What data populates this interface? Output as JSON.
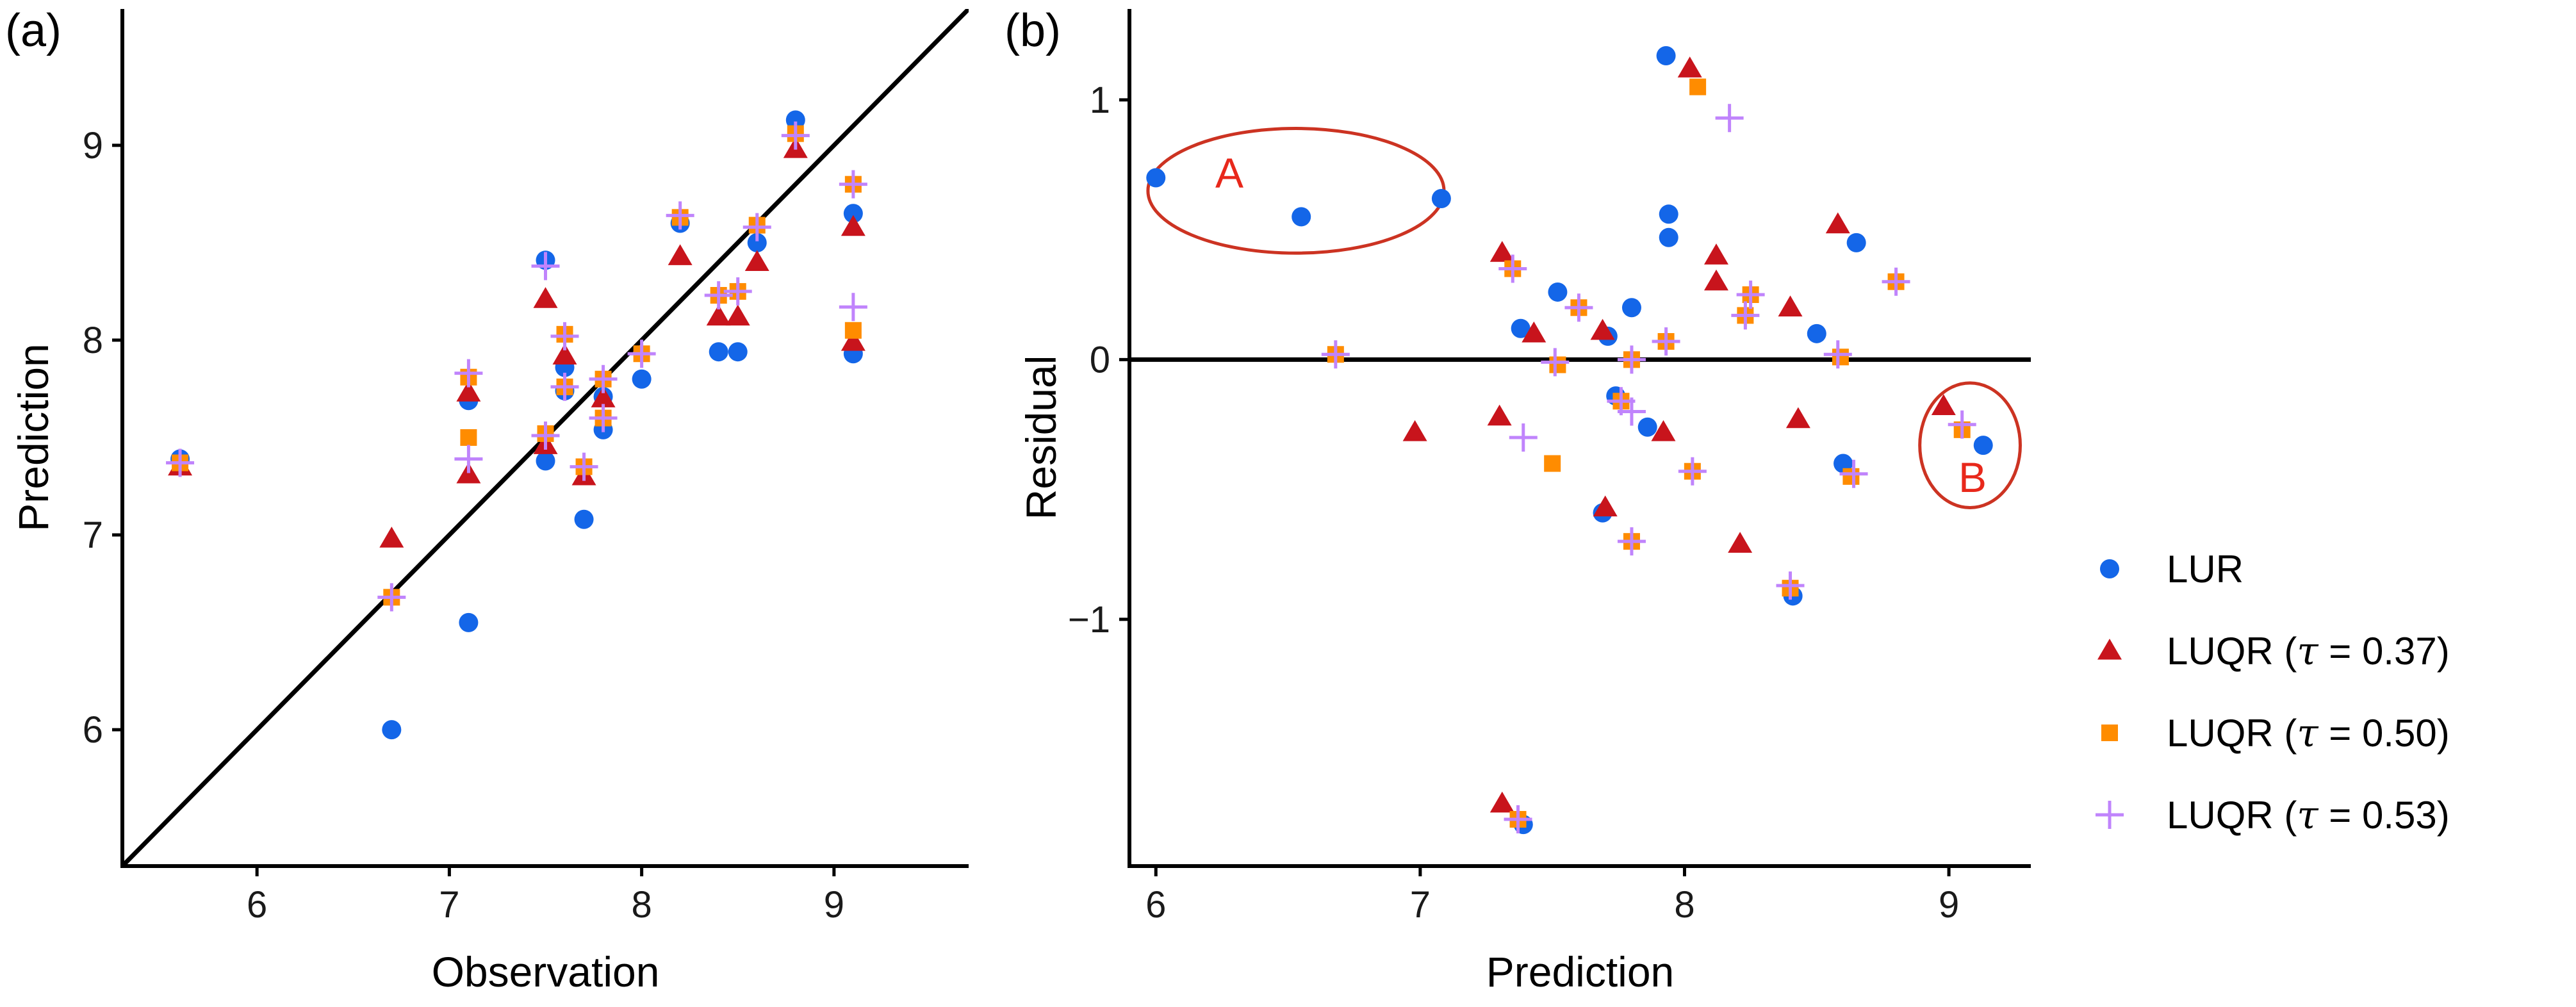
{
  "colors": {
    "lur": "#1466e8",
    "luqr_037": "#c8141c",
    "luqr_050": "#ff8c00",
    "luqr_053": "#c084fc",
    "annotation": "#cc3322",
    "axis": "#000000"
  },
  "legend": {
    "items": [
      {
        "key": "lur",
        "label": "LUR",
        "marker": "circle",
        "color": "#1466e8"
      },
      {
        "key": "luqr_037",
        "label": "LUQR (",
        "tau_symbol": "τ",
        "tau_text": " = 0.37)",
        "marker": "triangle",
        "color": "#c8141c"
      },
      {
        "key": "luqr_050",
        "label": "LUQR (",
        "tau_symbol": "τ",
        "tau_text": " = 0.50)",
        "marker": "square",
        "color": "#ff8c00"
      },
      {
        "key": "luqr_053",
        "label": "LUQR (",
        "tau_symbol": "τ",
        "tau_text": " = 0.53)",
        "marker": "plus",
        "color": "#c084fc"
      }
    ]
  },
  "chart_data": [
    {
      "panel": "(a)",
      "type": "scatter",
      "xlabel": "Observation",
      "ylabel": "Prediction",
      "xlim": [
        5.3,
        9.7
      ],
      "ylim": [
        5.3,
        9.7
      ],
      "xticks": [
        6,
        7,
        8,
        9
      ],
      "yticks": [
        6,
        7,
        8,
        9
      ],
      "reference_line": "y = x",
      "grid": false,
      "series": [
        {
          "name": "LUR",
          "marker": "circle",
          "points": [
            [
              5.6,
              7.39
            ],
            [
              6.7,
              6.0
            ],
            [
              7.1,
              6.55
            ],
            [
              7.1,
              7.69
            ],
            [
              7.5,
              7.38
            ],
            [
              7.5,
              8.41
            ],
            [
              7.6,
              7.86
            ],
            [
              7.6,
              7.74
            ],
            [
              7.7,
              7.08
            ],
            [
              7.8,
              7.71
            ],
            [
              7.8,
              7.54
            ],
            [
              8.0,
              7.8
            ],
            [
              8.2,
              8.6
            ],
            [
              8.4,
              7.94
            ],
            [
              8.5,
              7.94
            ],
            [
              8.6,
              8.5
            ],
            [
              8.8,
              9.13
            ],
            [
              9.1,
              8.65
            ],
            [
              9.1,
              7.93
            ]
          ]
        },
        {
          "name": "LUQR (τ = 0.37)",
          "marker": "triangle",
          "points": [
            [
              5.6,
              7.35
            ],
            [
              6.7,
              6.98
            ],
            [
              7.1,
              7.31
            ],
            [
              7.1,
              7.73
            ],
            [
              7.5,
              8.21
            ],
            [
              7.5,
              7.46
            ],
            [
              7.6,
              7.92
            ],
            [
              7.7,
              7.3
            ],
            [
              7.8,
              7.7
            ],
            [
              8.2,
              8.43
            ],
            [
              8.4,
              8.12
            ],
            [
              8.5,
              8.12
            ],
            [
              8.6,
              8.4
            ],
            [
              8.8,
              8.98
            ],
            [
              9.1,
              7.99
            ],
            [
              9.1,
              8.58
            ]
          ]
        },
        {
          "name": "LUQR (τ = 0.50)",
          "marker": "square",
          "points": [
            [
              5.6,
              7.37
            ],
            [
              6.7,
              6.68
            ],
            [
              7.1,
              7.81
            ],
            [
              7.1,
              7.5
            ],
            [
              7.5,
              7.52
            ],
            [
              7.6,
              8.03
            ],
            [
              7.6,
              7.76
            ],
            [
              7.7,
              7.35
            ],
            [
              7.8,
              7.8
            ],
            [
              7.8,
              7.6
            ],
            [
              8.0,
              7.93
            ],
            [
              8.2,
              8.63
            ],
            [
              8.4,
              8.23
            ],
            [
              8.5,
              8.25
            ],
            [
              8.6,
              8.59
            ],
            [
              8.8,
              9.06
            ],
            [
              9.1,
              8.8
            ],
            [
              9.1,
              8.05
            ]
          ]
        },
        {
          "name": "LUQR (τ = 0.53)",
          "marker": "plus",
          "points": [
            [
              5.6,
              7.37
            ],
            [
              6.7,
              6.68
            ],
            [
              7.1,
              7.83
            ],
            [
              7.1,
              7.39
            ],
            [
              7.5,
              7.51
            ],
            [
              7.5,
              8.38
            ],
            [
              7.6,
              8.02
            ],
            [
              7.6,
              7.76
            ],
            [
              7.7,
              7.35
            ],
            [
              7.8,
              7.8
            ],
            [
              7.8,
              7.6
            ],
            [
              8.0,
              7.93
            ],
            [
              8.2,
              8.64
            ],
            [
              8.4,
              8.23
            ],
            [
              8.5,
              8.25
            ],
            [
              8.6,
              8.58
            ],
            [
              8.8,
              9.05
            ],
            [
              9.1,
              8.8
            ],
            [
              9.1,
              8.17
            ]
          ]
        }
      ]
    },
    {
      "panel": "(b)",
      "type": "scatter",
      "xlabel": "Prediction",
      "ylabel": "Residual",
      "xlim": [
        5.9,
        9.31
      ],
      "ylim": [
        -1.95,
        1.35
      ],
      "xticks": [
        6,
        7,
        8,
        9
      ],
      "yticks": [
        -1,
        0,
        1
      ],
      "ytick_labels": [
        "−1",
        "0",
        "1"
      ],
      "reference_line": "y = 0",
      "grid": false,
      "annotations": [
        {
          "label": "A",
          "shape": "ellipse",
          "center": [
            6.53,
            0.65
          ],
          "radii": [
            0.56,
            0.24
          ]
        },
        {
          "label": "B",
          "shape": "ellipse",
          "center": [
            9.08,
            -0.33
          ],
          "radii": [
            0.19,
            0.24
          ]
        }
      ],
      "series": [
        {
          "name": "LUR",
          "marker": "circle",
          "points": [
            [
              6.0,
              0.7
            ],
            [
              6.55,
              0.55
            ],
            [
              7.08,
              0.62
            ],
            [
              7.93,
              1.17
            ],
            [
              7.94,
              0.56
            ],
            [
              7.94,
              0.47
            ],
            [
              8.65,
              0.45
            ],
            [
              7.38,
              0.12
            ],
            [
              7.52,
              0.26
            ],
            [
              7.8,
              0.2
            ],
            [
              7.71,
              0.09
            ],
            [
              8.5,
              0.1
            ],
            [
              7.74,
              -0.14
            ],
            [
              7.86,
              -0.26
            ],
            [
              7.69,
              -0.59
            ],
            [
              8.6,
              -0.4
            ],
            [
              9.13,
              -0.33
            ],
            [
              8.41,
              -0.91
            ],
            [
              7.39,
              -1.79
            ]
          ]
        },
        {
          "name": "LUQR (τ = 0.37)",
          "marker": "triangle",
          "points": [
            [
              6.98,
              -0.28
            ],
            [
              7.31,
              0.41
            ],
            [
              7.43,
              0.1
            ],
            [
              8.02,
              1.12
            ],
            [
              8.12,
              0.4
            ],
            [
              8.12,
              0.3
            ],
            [
              8.58,
              0.52
            ],
            [
              8.4,
              0.2
            ],
            [
              7.69,
              0.11
            ],
            [
              7.7,
              -0.57
            ],
            [
              7.92,
              -0.28
            ],
            [
              8.21,
              -0.71
            ],
            [
              8.43,
              -0.23
            ],
            [
              8.98,
              -0.18
            ],
            [
              7.31,
              -1.71
            ],
            [
              7.3,
              -0.22
            ]
          ]
        },
        {
          "name": "LUQR (τ = 0.50)",
          "marker": "square",
          "points": [
            [
              6.68,
              0.02
            ],
            [
              7.35,
              0.35
            ],
            [
              7.6,
              0.2
            ],
            [
              8.05,
              1.05
            ],
            [
              8.8,
              0.3
            ],
            [
              8.25,
              0.25
            ],
            [
              8.23,
              0.17
            ],
            [
              7.93,
              0.07
            ],
            [
              7.8,
              -0.0
            ],
            [
              7.52,
              -0.02
            ],
            [
              8.59,
              0.01
            ],
            [
              7.76,
              -0.16
            ],
            [
              7.5,
              -0.4
            ],
            [
              8.03,
              -0.43
            ],
            [
              8.63,
              -0.45
            ],
            [
              7.8,
              -0.7
            ],
            [
              9.05,
              -0.27
            ],
            [
              8.4,
              -0.88
            ],
            [
              7.37,
              -1.77
            ]
          ]
        },
        {
          "name": "LUQR (τ = 0.53)",
          "marker": "plus",
          "points": [
            [
              6.68,
              0.02
            ],
            [
              7.35,
              0.35
            ],
            [
              7.6,
              0.2
            ],
            [
              8.17,
              0.93
            ],
            [
              8.8,
              0.3
            ],
            [
              8.25,
              0.25
            ],
            [
              8.23,
              0.17
            ],
            [
              7.93,
              0.07
            ],
            [
              7.8,
              -0.0
            ],
            [
              7.51,
              -0.01
            ],
            [
              8.58,
              0.02
            ],
            [
              7.39,
              -0.3
            ],
            [
              7.76,
              -0.16
            ],
            [
              7.8,
              -0.2
            ],
            [
              8.03,
              -0.43
            ],
            [
              8.64,
              -0.44
            ],
            [
              7.8,
              -0.7
            ],
            [
              9.05,
              -0.25
            ],
            [
              8.4,
              -0.87
            ],
            [
              7.37,
              -1.77
            ]
          ]
        }
      ]
    }
  ]
}
